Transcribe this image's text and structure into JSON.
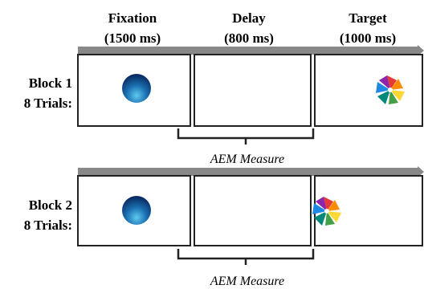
{
  "columns": [
    {
      "title": "Fixation",
      "duration": "(1500 ms)"
    },
    {
      "title": "Delay",
      "duration": "(800 ms)"
    },
    {
      "title": "Target",
      "duration": "(1000 ms)"
    }
  ],
  "blocks": [
    {
      "label": "Block 1",
      "trials": "8 Trials:",
      "measure": "AEM Measure"
    },
    {
      "label": "Block 2",
      "trials": "8 Trials:",
      "measure": "AEM Measure"
    }
  ]
}
